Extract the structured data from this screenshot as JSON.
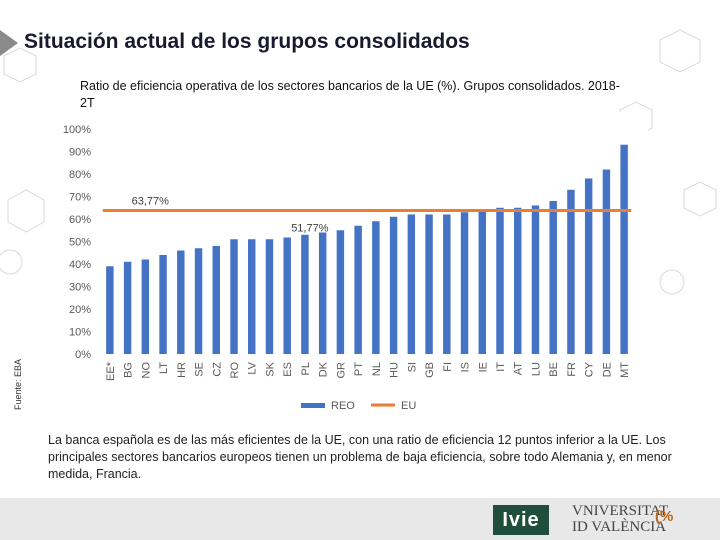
{
  "header": {
    "title": "Situación actual de los grupos consolidados"
  },
  "chart_data": {
    "type": "bar",
    "title": "Ratio de eficiencia operativa  de los sectores bancarios de la UE (%). Grupos consolidados. 2018-2T",
    "categories": [
      "EE*",
      "BG",
      "NO",
      "LT",
      "HR",
      "SE",
      "CZ",
      "RO",
      "LV",
      "SK",
      "ES",
      "PL",
      "DK",
      "GR",
      "PT",
      "NL",
      "HU",
      "SI",
      "GB",
      "FI",
      "IS",
      "IE",
      "IT",
      "AT",
      "LU",
      "BE",
      "FR",
      "CY",
      "DE",
      "MT"
    ],
    "series": [
      {
        "name": "REO",
        "color": "#4472c4",
        "values": [
          39,
          41,
          42,
          44,
          46,
          47,
          48,
          51,
          51,
          51,
          51.77,
          53,
          54,
          55,
          57,
          59,
          61,
          62,
          62,
          62,
          63,
          64,
          65,
          65,
          66,
          68,
          73,
          78,
          82,
          93
        ]
      },
      {
        "name": "EU",
        "color": "#ed7d31",
        "value": 63.77
      }
    ],
    "ylim": [
      0,
      100
    ],
    "yticks": [
      "0%",
      "10%",
      "20%",
      "30%",
      "40%",
      "50%",
      "60%",
      "70%",
      "80%",
      "90%",
      "100%"
    ],
    "annotations": [
      {
        "text": "63,77%",
        "category": "BG",
        "value": 63.77
      },
      {
        "text": "51,77%",
        "category": "ES",
        "value": 51.77
      }
    ],
    "legend": {
      "placement": "bottom",
      "items": [
        "REO",
        "EU"
      ]
    },
    "xlabel": "",
    "ylabel": ""
  },
  "source": {
    "label": "Fuente: EBA"
  },
  "summary": {
    "text": "La banca española es de las más eficientes de la UE, con una ratio de eficiencia 12 puntos inferior a la UE. Los principales sectores bancarios europeos tienen un problema de baja eficiencia, sobre todo Alemania y, en menor medida, Francia."
  },
  "footer": {
    "ivie": "Ivie",
    "university_line1": "VNIVERSITAT",
    "university_line2": "ID VALÈNCIA",
    "university_mark": "(̕%"
  },
  "colors": {
    "bar": "#4472c4",
    "eu_line": "#ed7d31",
    "title": "#1a1a2e",
    "logo": "#1f4e3d"
  }
}
